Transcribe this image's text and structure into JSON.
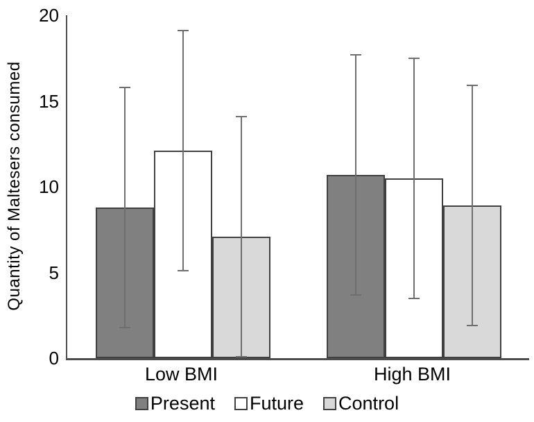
{
  "chart_data": {
    "type": "bar",
    "title": "",
    "xlabel": "",
    "ylabel": "Quantity of Maltesers consumed",
    "ylim": [
      0,
      20
    ],
    "yticks": [
      0,
      5,
      10,
      15,
      20
    ],
    "categories": [
      "Low BMI",
      "High BMI"
    ],
    "series": [
      {
        "name": "Present",
        "fill": "#808080",
        "values": [
          8.8,
          10.7
        ],
        "error_upper": [
          15.8,
          17.7
        ],
        "error_lower": [
          1.8,
          3.7
        ]
      },
      {
        "name": "Future",
        "fill": "#ffffff",
        "values": [
          12.1,
          10.5
        ],
        "error_upper": [
          19.1,
          17.5
        ],
        "error_lower": [
          5.1,
          3.5
        ]
      },
      {
        "name": "Control",
        "fill": "#d9d9d9",
        "values": [
          7.1,
          8.9
        ],
        "error_upper": [
          14.1,
          15.9
        ],
        "error_lower": [
          0.1,
          1.9
        ]
      }
    ],
    "legend": [
      "Present",
      "Future",
      "Control"
    ],
    "legend_position": "bottom",
    "grid": false,
    "colors": {
      "bar_border": "#404040",
      "error_bar": "#6e6e6e",
      "axis": "#4d4d4d",
      "text": "#000000"
    }
  }
}
